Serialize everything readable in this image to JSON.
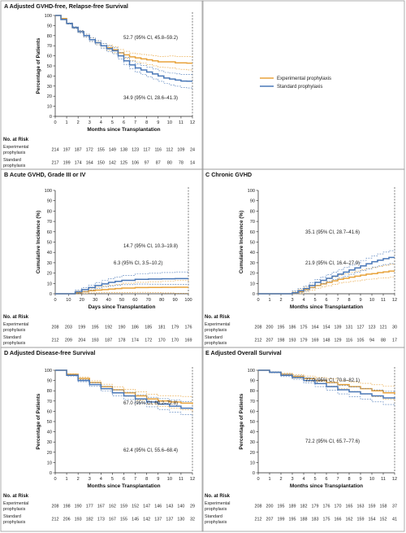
{
  "colors": {
    "experimental": "#e8a33c",
    "standard": "#4a78b8"
  },
  "legend": {
    "experimental": "Experimental prophylaxis",
    "standard": "Standard prophylaxis"
  },
  "risk_header": "No. at Risk",
  "risk_rows": [
    "Experimental prophylaxis",
    "Standard prophylaxis"
  ],
  "chart_data": [
    {
      "id": "A",
      "type": "line",
      "title": "A Adjusted GVHD-free, Relapse-free Survival",
      "xlabel": "Months since Transplantation",
      "ylabel": "Percentage of Patients",
      "xlim": [
        0,
        12
      ],
      "ylim": [
        0,
        100
      ],
      "xticks": [
        0,
        1,
        2,
        3,
        4,
        5,
        6,
        7,
        8,
        9,
        10,
        11,
        12
      ],
      "yticks": [
        0,
        10,
        20,
        30,
        40,
        50,
        60,
        70,
        80,
        90,
        100
      ],
      "series": [
        {
          "name": "Experimental prophylaxis",
          "x": [
            0,
            0.5,
            1,
            1.5,
            2,
            2.5,
            3,
            3.5,
            4,
            4.5,
            5,
            5.5,
            6,
            6.5,
            7,
            7.5,
            8,
            8.5,
            9,
            9.5,
            10,
            10.5,
            11,
            11.5,
            12
          ],
          "y": [
            100,
            97,
            92,
            88,
            84,
            80,
            76,
            73,
            70,
            68,
            66,
            63,
            61,
            59,
            58,
            57,
            56,
            55,
            54,
            54,
            54,
            53,
            53,
            52.7,
            52.7
          ]
        },
        {
          "name": "Standard prophylaxis",
          "x": [
            0,
            0.5,
            1,
            1.5,
            2,
            2.5,
            3,
            3.5,
            4,
            4.5,
            5,
            5.5,
            6,
            6.5,
            7,
            7.5,
            8,
            8.5,
            9,
            9.5,
            10,
            10.5,
            11,
            11.5,
            12
          ],
          "y": [
            100,
            96,
            92,
            88,
            84,
            80,
            76,
            73,
            70,
            67,
            65,
            60,
            55,
            51,
            48,
            46,
            44,
            42,
            40,
            38,
            37,
            36,
            35,
            34.9,
            34.9
          ]
        }
      ],
      "annotations": [
        "52.7 (95% CI, 45.8–59.2)",
        "34.9 (95% CI, 28.6–41.3)"
      ],
      "risk_x": [
        0,
        1,
        2,
        3,
        4,
        5,
        6,
        7,
        8,
        9,
        10,
        11,
        12
      ],
      "risk": [
        [
          214,
          197,
          187,
          172,
          155,
          149,
          138,
          123,
          117,
          116,
          112,
          109,
          24
        ],
        [
          217,
          199,
          174,
          164,
          150,
          142,
          125,
          106,
          97,
          87,
          80,
          78,
          14
        ]
      ]
    },
    {
      "id": "B",
      "type": "line",
      "title": "B Acute GVHD, Grade III or IV",
      "xlabel": "Days since Transplantation",
      "ylabel": "Cumulative Incidence (%)",
      "xlim": [
        0,
        100
      ],
      "ylim": [
        0,
        100
      ],
      "xticks": [
        0,
        10,
        20,
        30,
        40,
        50,
        60,
        70,
        80,
        90,
        100
      ],
      "yticks": [
        0,
        10,
        20,
        30,
        40,
        50,
        60,
        70,
        80,
        90,
        100
      ],
      "series": [
        {
          "name": "Experimental prophylaxis",
          "x": [
            0,
            10,
            15,
            20,
            25,
            30,
            35,
            40,
            45,
            50,
            60,
            70,
            80,
            90,
            100
          ],
          "y": [
            0,
            0,
            1,
            2,
            3,
            3.5,
            4,
            4.5,
            5,
            5.5,
            6,
            6.1,
            6.2,
            6.3,
            6.3
          ]
        },
        {
          "name": "Standard prophylaxis",
          "x": [
            0,
            10,
            15,
            20,
            25,
            30,
            35,
            40,
            45,
            50,
            60,
            70,
            80,
            90,
            100
          ],
          "y": [
            0,
            0,
            2,
            4,
            6,
            8,
            9.5,
            11,
            12,
            13,
            14,
            14.3,
            14.5,
            14.7,
            14.7
          ]
        }
      ],
      "annotations": [
        "14.7 (95% CI, 10.3–19.8)",
        "6.3 (95% CI, 3.5–10.2)"
      ],
      "risk_x": [
        0,
        10,
        20,
        30,
        40,
        50,
        60,
        70,
        80,
        90,
        100
      ],
      "risk": [
        [
          208,
          203,
          199,
          195,
          192,
          190,
          186,
          185,
          181,
          179,
          176
        ],
        [
          212,
          209,
          204,
          193,
          187,
          178,
          174,
          172,
          170,
          170,
          169
        ]
      ]
    },
    {
      "id": "C",
      "type": "line",
      "title": "C Chronic GVHD",
      "xlabel": "Months since Transplantation",
      "ylabel": "Cumulative Incidence (%)",
      "xlim": [
        0,
        12
      ],
      "ylim": [
        0,
        100
      ],
      "xticks": [
        0,
        1,
        2,
        3,
        4,
        5,
        6,
        7,
        8,
        9,
        10,
        11,
        12
      ],
      "yticks": [
        0,
        10,
        20,
        30,
        40,
        50,
        60,
        70,
        80,
        90,
        100
      ],
      "series": [
        {
          "name": "Experimental prophylaxis",
          "x": [
            0,
            1,
            2,
            2.5,
            3,
            3.5,
            4,
            4.5,
            5,
            5.5,
            6,
            6.5,
            7,
            7.5,
            8,
            8.5,
            9,
            9.5,
            10,
            10.5,
            11,
            11.5,
            12
          ],
          "y": [
            0,
            0,
            0,
            0,
            0.5,
            2,
            4,
            6,
            8,
            9.5,
            11,
            12.5,
            14,
            15,
            16,
            17,
            18,
            19,
            19.5,
            20.5,
            21.2,
            21.9,
            21.9
          ]
        },
        {
          "name": "Standard prophylaxis",
          "x": [
            0,
            1,
            2,
            2.5,
            3,
            3.5,
            4,
            4.5,
            5,
            5.5,
            6,
            6.5,
            7,
            7.5,
            8,
            8.5,
            9,
            9.5,
            10,
            10.5,
            11,
            11.5,
            12
          ],
          "y": [
            0,
            0,
            0,
            0,
            1,
            3,
            5,
            8,
            11,
            13,
            15,
            17,
            19,
            21,
            23,
            25,
            27,
            29,
            31,
            32.5,
            34,
            35.1,
            35.1
          ]
        }
      ],
      "annotations": [
        "35.1 (95% CI, 28.7–41.6)",
        "21.9 (95% CI, 16.4–27.9)"
      ],
      "risk_x": [
        0,
        1,
        2,
        3,
        4,
        5,
        6,
        7,
        8,
        9,
        10,
        11,
        12
      ],
      "risk": [
        [
          208,
          200,
          195,
          186,
          175,
          164,
          154,
          139,
          131,
          127,
          123,
          121,
          30
        ],
        [
          212,
          207,
          198,
          193,
          179,
          169,
          148,
          129,
          116,
          105,
          94,
          88,
          17
        ]
      ]
    },
    {
      "id": "D",
      "type": "line",
      "title": "D Adjusted Disease-free Survival",
      "xlabel": "Months since Transplantation",
      "ylabel": "Percentage of Patients",
      "xlim": [
        0,
        12
      ],
      "ylim": [
        0,
        100
      ],
      "xticks": [
        0,
        1,
        2,
        3,
        4,
        5,
        6,
        7,
        8,
        9,
        10,
        11,
        12
      ],
      "yticks": [
        0,
        10,
        20,
        30,
        40,
        50,
        60,
        70,
        80,
        90,
        100
      ],
      "series": [
        {
          "name": "Experimental prophylaxis",
          "x": [
            0,
            1,
            2,
            3,
            4,
            5,
            6,
            7,
            8,
            9,
            10,
            11,
            12
          ],
          "y": [
            100,
            96,
            92,
            88,
            84,
            81,
            78,
            75,
            72,
            70,
            69,
            68,
            67
          ]
        },
        {
          "name": "Standard prophylaxis",
          "x": [
            0,
            1,
            2,
            3,
            4,
            5,
            6,
            7,
            8,
            9,
            10,
            11,
            12
          ],
          "y": [
            100,
            95,
            90,
            86,
            82,
            78,
            75,
            72,
            69,
            67,
            65,
            63,
            62.4
          ]
        }
      ],
      "annotations": [
        "67.0 (95% CI, 60.2–72.8)",
        "62.4 (95% CI, 55.6–68.4)"
      ],
      "risk_x": [
        0,
        1,
        2,
        3,
        4,
        5,
        6,
        7,
        8,
        9,
        10,
        11,
        12
      ],
      "risk": [
        [
          208,
          198,
          190,
          177,
          167,
          162,
          159,
          152,
          147,
          146,
          143,
          140,
          29
        ],
        [
          212,
          206,
          193,
          182,
          173,
          167,
          155,
          145,
          142,
          137,
          137,
          130,
          32
        ]
      ]
    },
    {
      "id": "E",
      "type": "line",
      "title": "E Adjusted Overall Survival",
      "xlabel": "Months since Transplantation",
      "ylabel": "Percentage of Patients",
      "xlim": [
        0,
        12
      ],
      "ylim": [
        0,
        100
      ],
      "xticks": [
        0,
        1,
        2,
        3,
        4,
        5,
        6,
        7,
        8,
        9,
        10,
        11,
        12
      ],
      "yticks": [
        0,
        10,
        20,
        30,
        40,
        50,
        60,
        70,
        80,
        90,
        100
      ],
      "series": [
        {
          "name": "Experimental prophylaxis",
          "x": [
            0,
            1,
            2,
            3,
            4,
            5,
            6,
            7,
            8,
            9,
            10,
            11,
            12
          ],
          "y": [
            100,
            98,
            96,
            94,
            92,
            90,
            88,
            86,
            84,
            82,
            80,
            78,
            77
          ]
        },
        {
          "name": "Standard prophylaxis",
          "x": [
            0,
            1,
            2,
            3,
            4,
            5,
            6,
            7,
            8,
            9,
            10,
            11,
            12
          ],
          "y": [
            100,
            98,
            95,
            93,
            90,
            87,
            84,
            81,
            79,
            77,
            75,
            73,
            72.2
          ]
        }
      ],
      "annotations": [
        "77.0 (95% CI, 70.8–82.1)",
        "72.2 (95% CI, 65.7–77.6)"
      ],
      "risk_x": [
        0,
        1,
        2,
        3,
        4,
        5,
        6,
        7,
        8,
        9,
        10,
        11,
        12
      ],
      "risk": [
        [
          208,
          200,
          195,
          189,
          182,
          179,
          176,
          170,
          165,
          163,
          159,
          158,
          37
        ],
        [
          212,
          207,
          199,
          195,
          188,
          183,
          175,
          166,
          162,
          159,
          154,
          152,
          41
        ]
      ]
    }
  ]
}
